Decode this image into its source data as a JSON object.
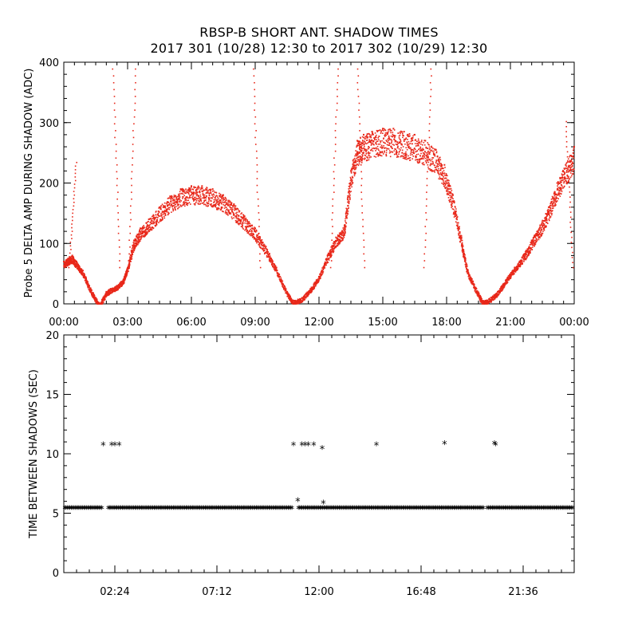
{
  "figure": {
    "title_line1": "RBSP-B SHORT ANT. SHADOW TIMES",
    "title_line2": "2017 301 (10/28) 12:30 to 2017 302 (10/29) 12:30"
  },
  "colors": {
    "series": "#e8281a",
    "axes": "#000000"
  },
  "chart_data": [
    {
      "type": "scatter",
      "ylabel": "Probe 5 DELTA AMP DURING SHADOW (ADC)",
      "xlabel": "",
      "x_units": "hours",
      "xlim": [
        0,
        24
      ],
      "ylim": [
        0,
        400
      ],
      "x_tick_labels": [
        "00:00",
        "03:00",
        "06:00",
        "09:00",
        "12:00",
        "15:00",
        "18:00",
        "21:00",
        "00:00"
      ],
      "x_tick_values": [
        0,
        3,
        6,
        9,
        12,
        15,
        18,
        21,
        24
      ],
      "y_tick_labels": [
        "0",
        "100",
        "200",
        "300",
        "400"
      ],
      "y_tick_values": [
        0,
        100,
        200,
        300,
        400
      ],
      "grid": false,
      "series": [
        {
          "color": "#e8281a",
          "x": [
            0.0,
            0.2,
            0.4,
            0.6,
            0.9,
            1.2,
            1.5,
            1.7,
            2.0,
            2.2,
            2.5,
            2.8,
            3.0,
            3.3,
            3.6,
            4.0,
            4.5,
            5.0,
            5.5,
            6.0,
            6.5,
            7.0,
            7.5,
            8.0,
            8.5,
            9.0,
            9.5,
            10.0,
            10.5,
            10.8,
            11.2,
            11.6,
            12.0,
            12.4,
            12.8,
            13.2,
            13.5,
            13.8,
            14.1,
            14.5,
            15.0,
            15.5,
            16.0,
            16.5,
            17.0,
            17.5,
            17.9,
            18.3,
            18.7,
            19.0,
            19.4,
            19.7,
            20.0,
            20.4,
            20.8,
            21.2,
            21.6,
            22.0,
            22.4,
            22.8,
            23.2,
            23.6,
            24.0
          ],
          "y": [
            70,
            75,
            80,
            70,
            55,
            30,
            10,
            0,
            20,
            25,
            30,
            40,
            60,
            105,
            125,
            140,
            160,
            178,
            190,
            195,
            195,
            190,
            180,
            165,
            145,
            125,
            95,
            60,
            20,
            5,
            10,
            25,
            45,
            80,
            110,
            130,
            220,
            270,
            280,
            285,
            290,
            290,
            285,
            280,
            270,
            255,
            230,
            180,
            110,
            55,
            25,
            5,
            8,
            20,
            40,
            60,
            80,
            105,
            130,
            160,
            200,
            230,
            260
          ]
        }
      ],
      "annotations": {
        "x": [
          0.6,
          2.3,
          3.4,
          8.9,
          12.9,
          13.8,
          17.3,
          23.6
        ],
        "y": [
          240,
          400,
          400,
          400,
          400,
          400,
          400,
          310
        ]
      }
    },
    {
      "type": "scatter",
      "ylabel": "TIME BETWEEN SHADOWS (SEC)",
      "xlabel": "",
      "x_units": "hours",
      "xlim": [
        0,
        24
      ],
      "ylim": [
        0,
        20
      ],
      "x_tick_labels": [
        "02:24",
        "07:12",
        "12:00",
        "16:48",
        "21:36"
      ],
      "x_tick_values": [
        2.4,
        7.2,
        12.0,
        16.8,
        21.6
      ],
      "y_tick_labels": [
        "0",
        "5",
        "10",
        "15",
        "20"
      ],
      "y_tick_values": [
        0,
        5,
        10,
        15,
        20
      ],
      "grid": false,
      "series": [
        {
          "marker": "asterisk",
          "color": "#000000",
          "baseline_value": 5.4,
          "baseline_gaps": [
            [
              1.85,
              2.05
            ],
            [
              10.75,
              11.0
            ],
            [
              19.75,
              19.85
            ]
          ],
          "x": [
            1.85,
            2.25,
            2.4,
            2.6,
            10.8,
            11.0,
            11.2,
            11.35,
            11.5,
            11.75,
            12.15,
            12.2,
            14.7,
            17.9,
            20.25,
            20.3
          ],
          "y": [
            10.7,
            10.7,
            10.7,
            10.7,
            10.7,
            6.0,
            10.7,
            10.7,
            10.7,
            10.7,
            10.4,
            5.8,
            10.7,
            10.8,
            10.8,
            10.7
          ]
        }
      ]
    }
  ]
}
